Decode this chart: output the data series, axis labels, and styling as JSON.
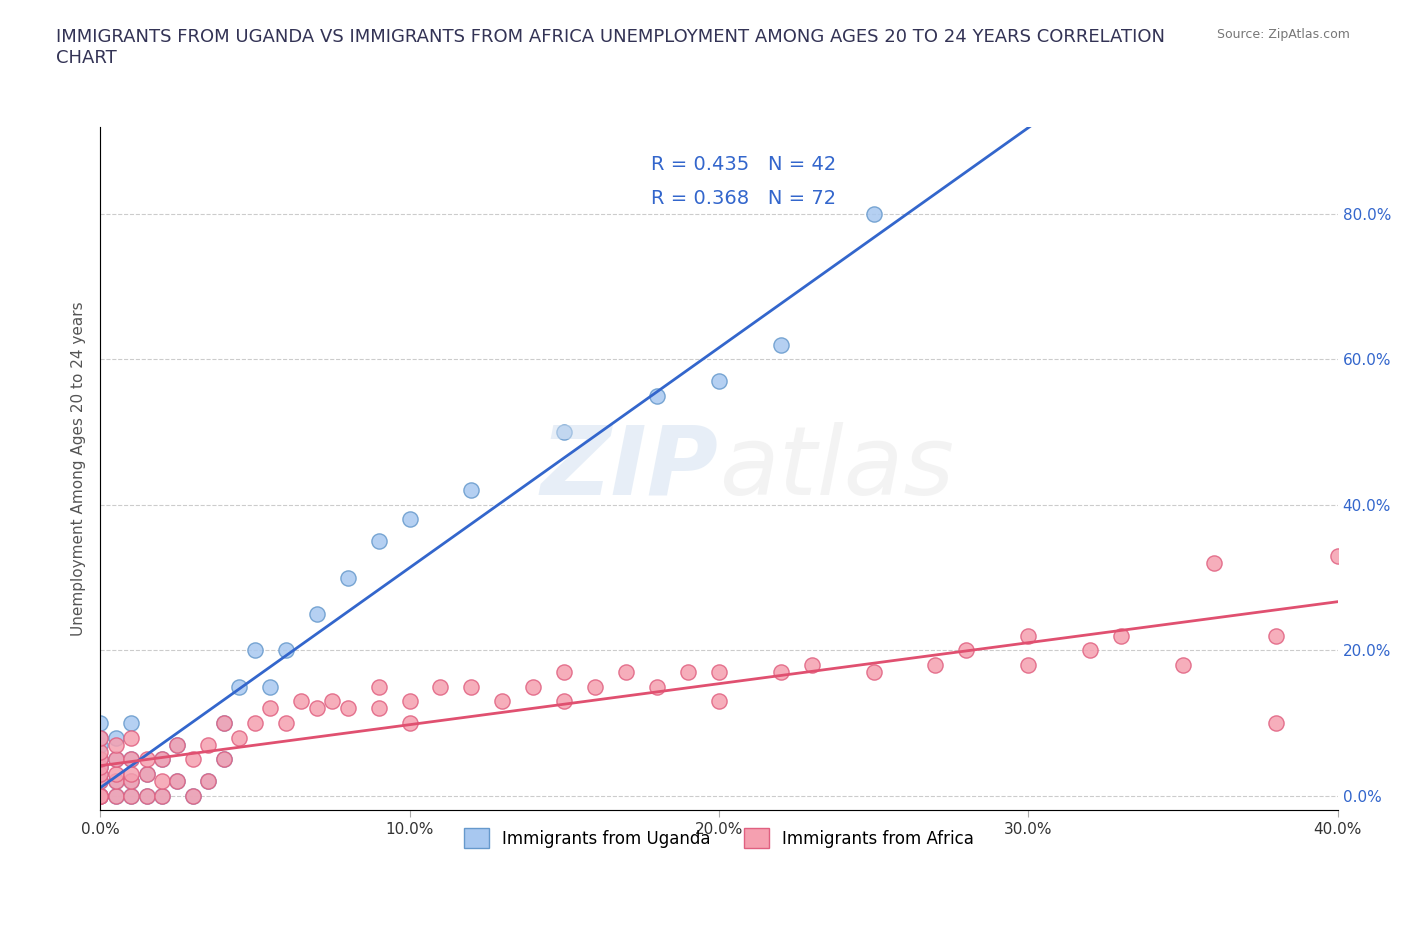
{
  "title": "IMMIGRANTS FROM UGANDA VS IMMIGRANTS FROM AFRICA UNEMPLOYMENT AMONG AGES 20 TO 24 YEARS CORRELATION\nCHART",
  "source_text": "Source: ZipAtlas.com",
  "xlabel": "",
  "ylabel": "Unemployment Among Ages 20 to 24 years",
  "xlim": [
    0.0,
    0.4
  ],
  "ylim": [
    -0.05,
    0.9
  ],
  "x_ticks": [
    0.0,
    0.1,
    0.2,
    0.3,
    0.4
  ],
  "x_tick_labels": [
    "0.0%",
    "10.0%",
    "20.0%",
    "30.0%",
    "40.0%"
  ],
  "y_ticks": [
    0.0,
    0.2,
    0.4,
    0.6,
    0.8
  ],
  "y_tick_labels": [
    "0.0%",
    "20.0%",
    "40.0%",
    "60.0%",
    "80.0%"
  ],
  "uganda_color": "#a8c8f0",
  "africa_color": "#f5a0b0",
  "uganda_edge_color": "#6699cc",
  "africa_edge_color": "#e06080",
  "trend_uganda_color": "#3366cc",
  "trend_africa_color": "#e05070",
  "watermark": "ZIPatlas",
  "legend_R_uganda": "R = 0.435",
  "legend_N_uganda": "N = 42",
  "legend_R_africa": "R = 0.368",
  "legend_N_africa": "N = 72",
  "uganda_x": [
    0.0,
    0.0,
    0.0,
    0.0,
    0.0,
    0.0,
    0.0,
    0.0,
    0.0,
    0.0,
    0.005,
    0.005,
    0.005,
    0.005,
    0.01,
    0.01,
    0.01,
    0.01,
    0.015,
    0.015,
    0.02,
    0.02,
    0.025,
    0.025,
    0.03,
    0.035,
    0.04,
    0.04,
    0.045,
    0.05,
    0.055,
    0.06,
    0.07,
    0.08,
    0.09,
    0.1,
    0.12,
    0.15,
    0.18,
    0.2,
    0.22,
    0.25
  ],
  "uganda_y": [
    0.0,
    0.0,
    0.0,
    0.02,
    0.03,
    0.04,
    0.05,
    0.07,
    0.08,
    0.1,
    0.0,
    0.02,
    0.05,
    0.08,
    0.0,
    0.02,
    0.05,
    0.1,
    0.0,
    0.03,
    0.0,
    0.05,
    0.02,
    0.07,
    0.0,
    0.02,
    0.05,
    0.1,
    0.15,
    0.2,
    0.15,
    0.2,
    0.25,
    0.3,
    0.35,
    0.38,
    0.42,
    0.5,
    0.55,
    0.57,
    0.62,
    0.8
  ],
  "africa_x": [
    0.0,
    0.0,
    0.0,
    0.0,
    0.0,
    0.0,
    0.0,
    0.0,
    0.0,
    0.0,
    0.005,
    0.005,
    0.005,
    0.005,
    0.005,
    0.01,
    0.01,
    0.01,
    0.01,
    0.01,
    0.015,
    0.015,
    0.015,
    0.02,
    0.02,
    0.02,
    0.025,
    0.025,
    0.03,
    0.03,
    0.035,
    0.035,
    0.04,
    0.04,
    0.045,
    0.05,
    0.055,
    0.06,
    0.065,
    0.07,
    0.075,
    0.08,
    0.09,
    0.09,
    0.1,
    0.1,
    0.11,
    0.12,
    0.13,
    0.14,
    0.15,
    0.15,
    0.16,
    0.17,
    0.18,
    0.19,
    0.2,
    0.2,
    0.22,
    0.23,
    0.25,
    0.27,
    0.28,
    0.3,
    0.3,
    0.32,
    0.33,
    0.35,
    0.36,
    0.38,
    0.38,
    0.4
  ],
  "africa_y": [
    0.0,
    0.0,
    0.0,
    0.0,
    0.02,
    0.03,
    0.04,
    0.05,
    0.06,
    0.08,
    0.0,
    0.02,
    0.03,
    0.05,
    0.07,
    0.0,
    0.02,
    0.03,
    0.05,
    0.08,
    0.0,
    0.03,
    0.05,
    0.0,
    0.02,
    0.05,
    0.02,
    0.07,
    0.0,
    0.05,
    0.02,
    0.07,
    0.05,
    0.1,
    0.08,
    0.1,
    0.12,
    0.1,
    0.13,
    0.12,
    0.13,
    0.12,
    0.12,
    0.15,
    0.1,
    0.13,
    0.15,
    0.15,
    0.13,
    0.15,
    0.13,
    0.17,
    0.15,
    0.17,
    0.15,
    0.17,
    0.13,
    0.17,
    0.17,
    0.18,
    0.17,
    0.18,
    0.2,
    0.18,
    0.22,
    0.2,
    0.22,
    0.18,
    0.32,
    0.1,
    0.22,
    0.33
  ]
}
